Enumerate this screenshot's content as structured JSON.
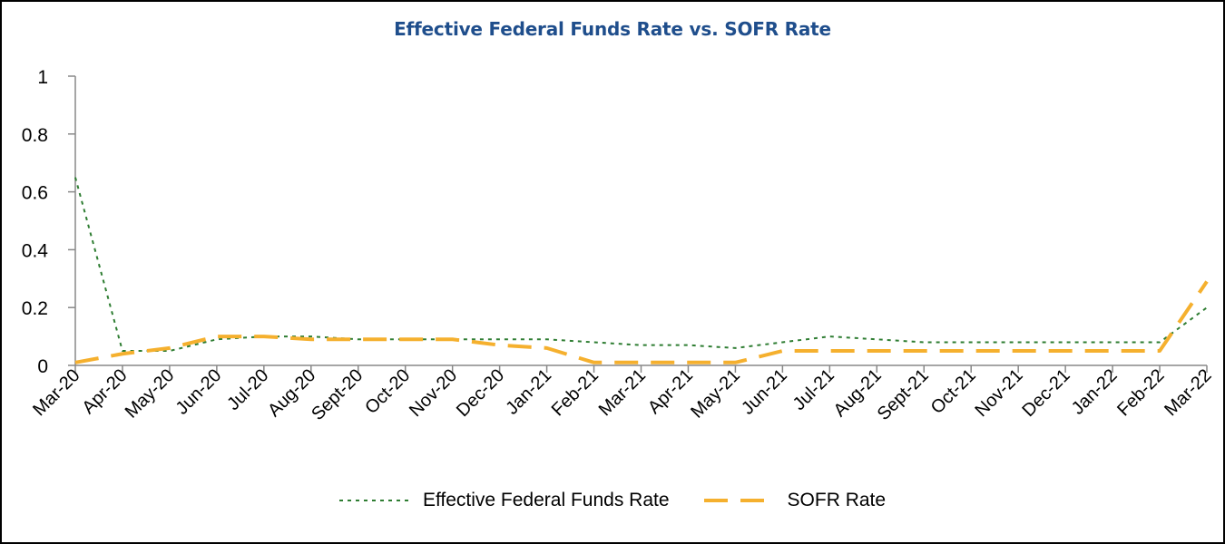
{
  "chart_data": {
    "type": "line",
    "title": "Effective Federal Funds Rate vs. SOFR Rate",
    "xlabel": "",
    "ylabel": "",
    "ylim": [
      0,
      1
    ],
    "yticks": [
      "0",
      "0.2",
      "0.4",
      "0.6",
      "0.8",
      "1"
    ],
    "ytick_values": [
      0,
      0.2,
      0.4,
      0.6,
      0.8,
      1
    ],
    "categories": [
      "Mar-20",
      "Apr-20",
      "May-20",
      "Jun-20",
      "Jul-20",
      "Aug-20",
      "Sept-20",
      "Oct-20",
      "Nov-20",
      "Dec-20",
      "Jan-21",
      "Feb-21",
      "Mar-21",
      "Apr-21",
      "May-21",
      "Jun-21",
      "Jul-21",
      "Aug-21",
      "Sept-21",
      "Oct-21",
      "Nov-21",
      "Dec-21",
      "Jan-22",
      "Feb-22",
      "Mar-22"
    ],
    "series": [
      {
        "name": "Effective Federal Funds Rate",
        "color": "#2E7D32",
        "style": "short-dash",
        "values": [
          0.65,
          0.05,
          0.05,
          0.09,
          0.1,
          0.1,
          0.09,
          0.09,
          0.09,
          0.09,
          0.09,
          0.08,
          0.07,
          0.07,
          0.06,
          0.08,
          0.1,
          0.09,
          0.08,
          0.08,
          0.08,
          0.08,
          0.08,
          0.08,
          0.2
        ]
      },
      {
        "name": "SOFR Rate",
        "color": "#F5B02E",
        "style": "long-dash",
        "values": [
          0.01,
          0.04,
          0.06,
          0.1,
          0.1,
          0.09,
          0.09,
          0.09,
          0.09,
          0.07,
          0.06,
          0.01,
          0.01,
          0.01,
          0.01,
          0.05,
          0.05,
          0.05,
          0.05,
          0.05,
          0.05,
          0.05,
          0.05,
          0.05,
          0.29
        ]
      }
    ],
    "legend_position": "bottom",
    "title_color": "#1F4E8C",
    "axis_color": "#888888",
    "grid": false
  }
}
